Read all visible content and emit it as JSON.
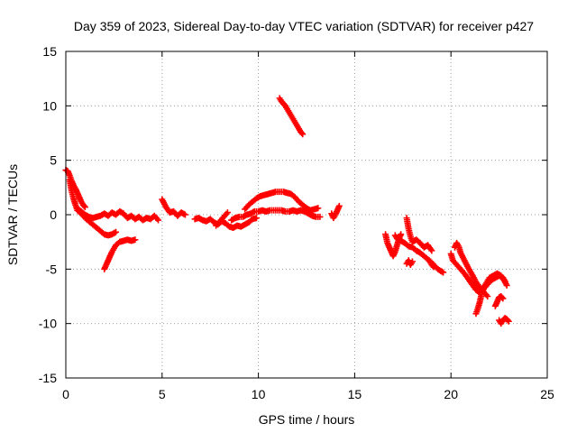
{
  "chart_data": {
    "type": "scatter",
    "title": "Day 359 of 2023, Sidereal Day-to-day VTEC variation (SDTVAR) for receiver p427",
    "xlabel": "GPS time / hours",
    "ylabel": "SDTVAR / TECUs",
    "xlim": [
      0,
      25
    ],
    "ylim": [
      -15,
      15
    ],
    "xticks": [
      0,
      5,
      10,
      15,
      20,
      25
    ],
    "yticks": [
      -15,
      -10,
      -5,
      0,
      5,
      10,
      15
    ],
    "grid": true,
    "marker": "+",
    "series": [
      {
        "name": "SDTVAR",
        "color": "#ff0000",
        "segments": [
          [
            [
              0.0,
              4.1
            ],
            [
              0.1,
              4.0
            ],
            [
              0.2,
              3.6
            ],
            [
              0.3,
              3.1
            ],
            [
              0.4,
              2.7
            ],
            [
              0.5,
              2.4
            ],
            [
              0.6,
              2.0
            ],
            [
              0.7,
              1.6
            ],
            [
              0.8,
              1.2
            ],
            [
              0.9,
              0.9
            ],
            [
              1.0,
              0.7
            ]
          ],
          [
            [
              0.2,
              3.2
            ],
            [
              0.3,
              2.2
            ],
            [
              0.4,
              1.5
            ],
            [
              0.5,
              0.9
            ],
            [
              0.6,
              0.4
            ],
            [
              0.8,
              0.1
            ],
            [
              1.0,
              -0.3
            ],
            [
              1.2,
              -0.6
            ],
            [
              1.4,
              -0.9
            ],
            [
              1.6,
              -1.2
            ],
            [
              1.8,
              -1.5
            ],
            [
              2.0,
              -1.8
            ],
            [
              2.2,
              -1.9
            ],
            [
              2.4,
              -1.8
            ],
            [
              2.6,
              -1.6
            ]
          ],
          [
            [
              0.6,
              0.6
            ],
            [
              0.8,
              0.3
            ],
            [
              1.0,
              0.0
            ],
            [
              1.2,
              -0.2
            ],
            [
              1.4,
              -0.3
            ],
            [
              1.6,
              -0.2
            ],
            [
              1.8,
              -0.1
            ],
            [
              2.0,
              0.1
            ],
            [
              2.2,
              -0.1
            ],
            [
              2.4,
              0.2
            ],
            [
              2.6,
              0.0
            ],
            [
              2.8,
              0.3
            ],
            [
              3.0,
              0.1
            ],
            [
              3.2,
              -0.3
            ],
            [
              3.4,
              -0.1
            ],
            [
              3.6,
              -0.4
            ],
            [
              3.8,
              -0.2
            ],
            [
              4.0,
              -0.5
            ],
            [
              4.2,
              -0.3
            ],
            [
              4.4,
              -0.4
            ],
            [
              4.6,
              -0.1
            ],
            [
              4.8,
              -0.5
            ]
          ],
          [
            [
              2.0,
              -5.0
            ],
            [
              2.1,
              -4.6
            ],
            [
              2.2,
              -4.2
            ],
            [
              2.3,
              -3.8
            ],
            [
              2.4,
              -3.4
            ],
            [
              2.5,
              -3.1
            ],
            [
              2.6,
              -2.8
            ],
            [
              2.8,
              -2.5
            ],
            [
              3.0,
              -2.4
            ],
            [
              3.2,
              -2.3
            ],
            [
              3.4,
              -2.4
            ],
            [
              3.6,
              -2.3
            ]
          ],
          [
            [
              5.0,
              1.4
            ],
            [
              5.2,
              0.7
            ],
            [
              5.4,
              0.2
            ],
            [
              5.6,
              0.3
            ],
            [
              5.8,
              -0.1
            ],
            [
              6.0,
              0.2
            ],
            [
              6.2,
              0.0
            ]
          ],
          [
            [
              6.7,
              -0.4
            ],
            [
              6.9,
              -0.3
            ],
            [
              7.1,
              -0.5
            ],
            [
              7.3,
              -0.6
            ],
            [
              7.5,
              -0.4
            ],
            [
              7.7,
              -0.7
            ],
            [
              7.9,
              -0.9
            ],
            [
              8.1,
              -0.6
            ],
            [
              8.3,
              -0.8
            ],
            [
              8.5,
              -1.1
            ],
            [
              8.7,
              -1.2
            ],
            [
              8.9,
              -1.0
            ],
            [
              9.1,
              -1.1
            ],
            [
              9.3,
              -0.9
            ],
            [
              9.5,
              -0.7
            ],
            [
              9.7,
              -0.4
            ],
            [
              9.9,
              -0.3
            ]
          ],
          [
            [
              7.8,
              -1.0
            ],
            [
              8.0,
              -0.6
            ],
            [
              8.2,
              -0.2
            ],
            [
              8.4,
              0.2
            ]
          ],
          [
            [
              8.6,
              -0.5
            ],
            [
              8.8,
              -0.3
            ],
            [
              9.0,
              -0.2
            ],
            [
              9.2,
              -0.2
            ],
            [
              9.4,
              0.0
            ],
            [
              9.6,
              0.1
            ],
            [
              9.8,
              0.3
            ],
            [
              10.0,
              0.3
            ],
            [
              10.2,
              0.4
            ],
            [
              10.4,
              0.3
            ],
            [
              10.6,
              0.4
            ],
            [
              10.8,
              0.4
            ],
            [
              11.0,
              0.4
            ],
            [
              11.2,
              0.4
            ],
            [
              11.4,
              0.3
            ],
            [
              11.6,
              0.3
            ],
            [
              11.8,
              0.4
            ],
            [
              12.0,
              0.3
            ],
            [
              12.2,
              0.4
            ],
            [
              12.4,
              0.3
            ],
            [
              12.6,
              0.1
            ],
            [
              12.8,
              -0.1
            ],
            [
              13.0,
              -0.2
            ],
            [
              13.2,
              -0.2
            ]
          ],
          [
            [
              9.3,
              0.5
            ],
            [
              9.5,
              0.9
            ],
            [
              9.7,
              1.2
            ],
            [
              9.9,
              1.5
            ],
            [
              10.1,
              1.7
            ],
            [
              10.3,
              1.8
            ],
            [
              10.5,
              1.9
            ],
            [
              10.7,
              2.0
            ],
            [
              10.9,
              2.1
            ],
            [
              11.1,
              2.1
            ],
            [
              11.3,
              2.1
            ],
            [
              11.5,
              2.0
            ],
            [
              11.7,
              1.9
            ],
            [
              11.9,
              1.6
            ],
            [
              12.1,
              1.2
            ],
            [
              12.3,
              0.9
            ],
            [
              12.5,
              0.6
            ],
            [
              12.7,
              0.4
            ],
            [
              12.9,
              0.5
            ],
            [
              13.1,
              0.6
            ]
          ],
          [
            [
              11.1,
              10.7
            ],
            [
              11.2,
              10.4
            ],
            [
              11.3,
              10.2
            ],
            [
              11.4,
              10.0
            ],
            [
              11.5,
              9.7
            ],
            [
              11.6,
              9.4
            ],
            [
              11.7,
              9.1
            ],
            [
              11.8,
              8.8
            ],
            [
              11.9,
              8.5
            ],
            [
              12.0,
              8.2
            ],
            [
              12.1,
              7.9
            ],
            [
              12.2,
              7.6
            ],
            [
              12.3,
              7.4
            ]
          ],
          [
            [
              13.8,
              0.1
            ],
            [
              13.9,
              -0.3
            ],
            [
              14.0,
              0.0
            ],
            [
              14.1,
              0.4
            ],
            [
              14.2,
              0.8
            ]
          ],
          [
            [
              16.6,
              -1.8
            ],
            [
              16.7,
              -2.6
            ],
            [
              16.8,
              -3.0
            ],
            [
              16.9,
              -3.4
            ],
            [
              17.0,
              -3.8
            ],
            [
              17.1,
              -3.4
            ],
            [
              17.2,
              -2.8
            ],
            [
              17.3,
              -2.2
            ],
            [
              17.4,
              -1.8
            ]
          ],
          [
            [
              17.1,
              -1.9
            ],
            [
              17.2,
              -2.2
            ],
            [
              17.4,
              -2.4
            ],
            [
              17.6,
              -2.6
            ],
            [
              17.8,
              -2.9
            ],
            [
              18.0,
              -3.0
            ],
            [
              18.2,
              -3.3
            ],
            [
              18.4,
              -3.5
            ],
            [
              18.6,
              -3.8
            ],
            [
              18.8,
              -4.1
            ],
            [
              19.0,
              -4.4
            ],
            [
              19.2,
              -4.8
            ],
            [
              19.4,
              -5.1
            ],
            [
              19.6,
              -5.3
            ]
          ],
          [
            [
              17.7,
              -4.5
            ],
            [
              17.8,
              -4.2
            ],
            [
              17.9,
              -4.6
            ],
            [
              18.0,
              -4.3
            ]
          ],
          [
            [
              17.7,
              -0.3
            ],
            [
              17.8,
              -1.3
            ],
            [
              17.9,
              -2.0
            ],
            [
              18.0,
              -2.5
            ],
            [
              18.2,
              -2.3
            ],
            [
              18.4,
              -2.6
            ],
            [
              18.6,
              -3.0
            ],
            [
              18.8,
              -2.8
            ],
            [
              19.0,
              -3.3
            ]
          ],
          [
            [
              18.9,
              -4.3
            ],
            [
              19.0,
              -4.6
            ],
            [
              19.1,
              -4.8
            ]
          ],
          [
            [
              20.0,
              -3.6
            ],
            [
              20.1,
              -4.2
            ],
            [
              20.3,
              -4.6
            ],
            [
              20.5,
              -5.0
            ],
            [
              20.7,
              -5.4
            ],
            [
              20.9,
              -5.9
            ],
            [
              21.1,
              -6.4
            ],
            [
              21.3,
              -6.9
            ],
            [
              21.5,
              -7.2
            ],
            [
              21.7,
              -6.8
            ],
            [
              21.9,
              -6.4
            ],
            [
              22.1,
              -6.0
            ],
            [
              22.3,
              -5.8
            ],
            [
              22.5,
              -5.6
            ],
            [
              22.7,
              -5.8
            ],
            [
              22.9,
              -6.5
            ]
          ],
          [
            [
              20.2,
              -3.0
            ],
            [
              20.3,
              -2.6
            ],
            [
              20.4,
              -2.9
            ],
            [
              20.5,
              -3.5
            ],
            [
              20.7,
              -4.2
            ],
            [
              20.9,
              -4.9
            ],
            [
              21.1,
              -5.5
            ],
            [
              21.3,
              -6.2
            ],
            [
              21.5,
              -6.7
            ],
            [
              21.7,
              -7.1
            ],
            [
              21.9,
              -7.5
            ]
          ],
          [
            [
              21.3,
              -9.1
            ],
            [
              21.4,
              -8.6
            ],
            [
              21.5,
              -8.0
            ],
            [
              21.6,
              -7.2
            ],
            [
              21.7,
              -6.8
            ],
            [
              21.8,
              -6.4
            ],
            [
              21.9,
              -6.1
            ],
            [
              22.0,
              -5.8
            ],
            [
              22.2,
              -5.6
            ],
            [
              22.4,
              -5.4
            ],
            [
              22.6,
              -5.6
            ],
            [
              22.8,
              -6.1
            ]
          ],
          [
            [
              22.3,
              -8.4
            ],
            [
              22.4,
              -8.0
            ],
            [
              22.5,
              -7.6
            ],
            [
              22.6,
              -7.5
            ],
            [
              22.7,
              -7.7
            ]
          ],
          [
            [
              22.5,
              -9.7
            ],
            [
              22.6,
              -10.0
            ],
            [
              22.7,
              -9.7
            ],
            [
              22.8,
              -9.5
            ],
            [
              22.9,
              -9.6
            ],
            [
              23.0,
              -9.8
            ]
          ]
        ]
      }
    ]
  }
}
